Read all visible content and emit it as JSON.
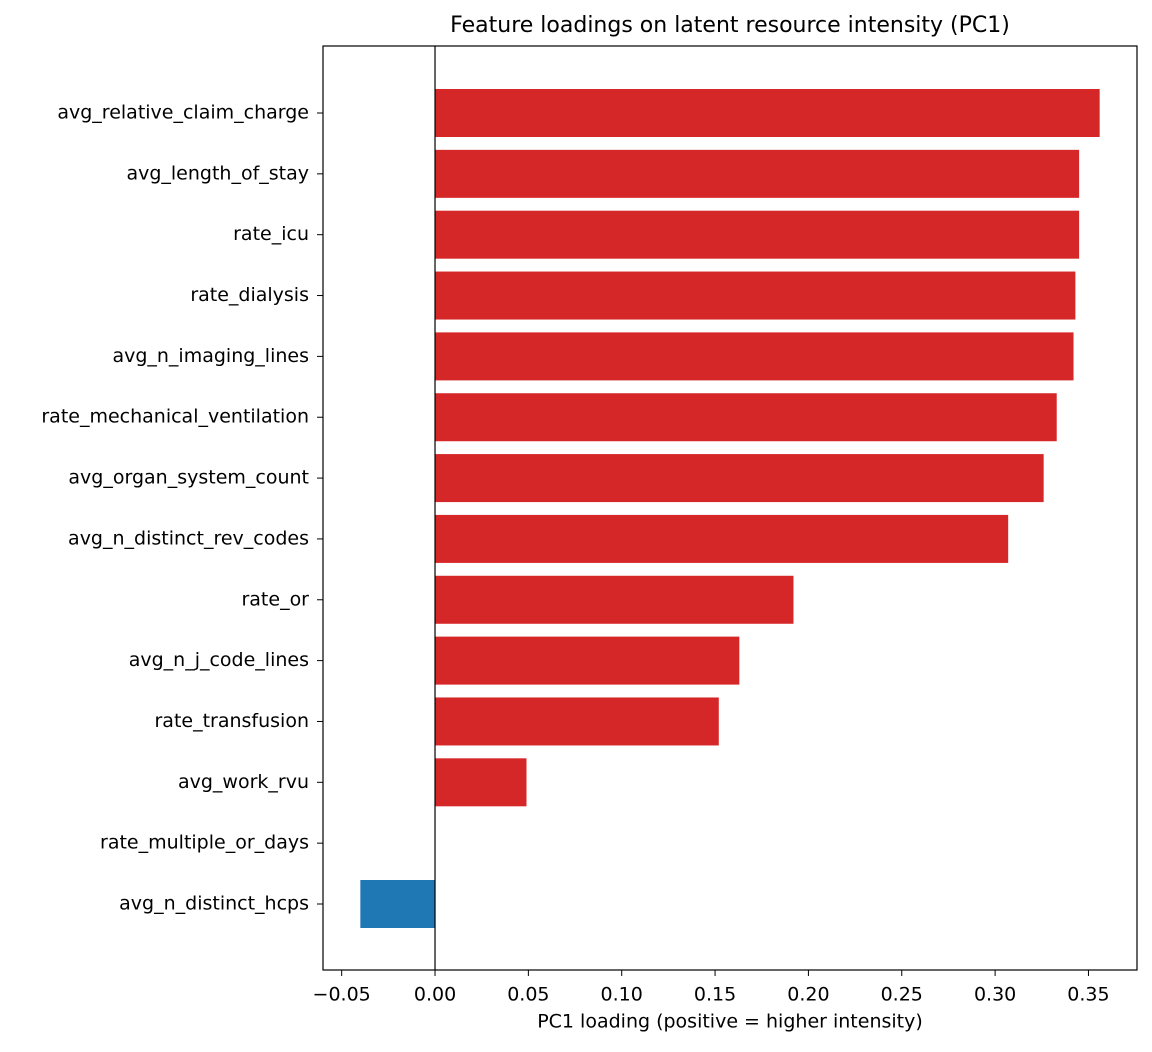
{
  "chart_data": {
    "type": "barh",
    "title": "Feature loadings on latent resource intensity (PC1)",
    "x_label": "PC1 loading (positive = higher intensity)",
    "categories": [
      "avg_relative_claim_charge",
      "avg_length_of_stay",
      "rate_icu",
      "rate_dialysis",
      "avg_n_imaging_lines",
      "rate_mechanical_ventilation",
      "avg_organ_system_count",
      "avg_n_distinct_rev_codes",
      "rate_or",
      "avg_n_j_code_lines",
      "rate_transfusion",
      "avg_work_rvu",
      "rate_multiple_or_days",
      "avg_n_distinct_hcps"
    ],
    "values": [
      0.356,
      0.345,
      0.345,
      0.343,
      0.342,
      0.333,
      0.326,
      0.307,
      0.192,
      0.163,
      0.152,
      0.049,
      0.0,
      -0.04
    ],
    "colors": [
      "#d62728",
      "#d62728",
      "#d62728",
      "#d62728",
      "#d62728",
      "#d62728",
      "#d62728",
      "#d62728",
      "#d62728",
      "#d62728",
      "#d62728",
      "#d62728",
      "#d62728",
      "#1f77b4"
    ],
    "xlim": [
      -0.06,
      0.376
    ],
    "xticks": [
      {
        "value": -0.05,
        "label": "−0.05"
      },
      {
        "value": 0,
        "label": "0.00"
      },
      {
        "value": 0.05,
        "label": "0.05"
      },
      {
        "value": 0.1,
        "label": "0.10"
      },
      {
        "value": 0.15,
        "label": "0.15"
      },
      {
        "value": 0.2,
        "label": "0.20"
      },
      {
        "value": 0.25,
        "label": "0.25"
      },
      {
        "value": 0.3,
        "label": "0.30"
      },
      {
        "value": 0.35,
        "label": "0.35"
      }
    ],
    "zero_line": true
  }
}
